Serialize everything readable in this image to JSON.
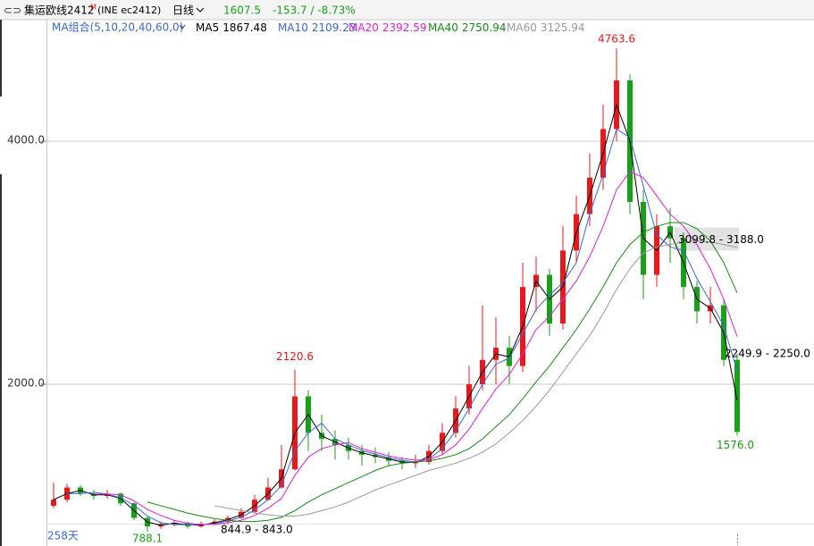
{
  "header": {
    "name": "集运欧线2412",
    "mark": "M",
    "code": "(INE ec2412)",
    "period": "日线",
    "price": "1607.5",
    "change": "-153.7 / -8.73%"
  },
  "chart_data": {
    "type": "candlestick",
    "ma_group": "MA组合(5,10,20,40,60,0)",
    "days": "258天",
    "ylim": [
      676,
      4978
    ],
    "yticks": [
      {
        "value": 4000,
        "label": "4000.0"
      },
      {
        "value": 2000,
        "label": "2000.0"
      }
    ],
    "grid": true,
    "up_color": "#e8191c",
    "down_color": "#18a018",
    "open": [
      1000,
      1050,
      1150,
      1100,
      1080,
      1100,
      1020,
      900,
      830,
      850,
      860,
      830,
      850,
      870,
      900,
      950,
      1050,
      1150,
      1300,
      1900,
      1600,
      1550,
      1500,
      1450,
      1420,
      1400,
      1370,
      1350,
      1360,
      1450,
      1600,
      1800,
      2000,
      2200,
      2300,
      2150,
      2800,
      2900,
      2500,
      3100,
      3400,
      3700,
      4100,
      4500,
      3500,
      2900,
      3300,
      3200,
      2800,
      2600,
      2650,
      2200
    ],
    "high": [
      1190,
      1180,
      1170,
      1130,
      1130,
      1110,
      1030,
      910,
      870,
      880,
      870,
      870,
      890,
      920,
      980,
      1090,
      1230,
      1500,
      2120.6,
      1950,
      1750,
      1620,
      1560,
      1500,
      1480,
      1440,
      1400,
      1420,
      1500,
      1680,
      1900,
      2150,
      2650,
      2550,
      2400,
      3000,
      3050,
      2950,
      3300,
      3550,
      3900,
      4300,
      4763.6,
      4550,
      3600,
      3400,
      3450,
      3250,
      2850,
      2800,
      2700,
      2250
    ],
    "low": [
      980,
      1030,
      1080,
      1050,
      1060,
      1000,
      880,
      788.1,
      810,
      830,
      810,
      820,
      840,
      850,
      890,
      940,
      1040,
      1140,
      1290,
      1450,
      1450,
      1380,
      1380,
      1330,
      1350,
      1320,
      1300,
      1310,
      1340,
      1420,
      1560,
      1750,
      1950,
      2000,
      2000,
      2100,
      2600,
      2400,
      2450,
      3000,
      3300,
      3600,
      4000,
      3400,
      2700,
      2800,
      3000,
      2700,
      2500,
      2500,
      2150,
      1576.0
    ],
    "close": [
      1050,
      1150,
      1100,
      1080,
      1100,
      1020,
      900,
      830,
      850,
      860,
      830,
      850,
      870,
      900,
      950,
      1050,
      1150,
      1300,
      1900,
      1600,
      1550,
      1500,
      1450,
      1420,
      1400,
      1370,
      1350,
      1360,
      1450,
      1600,
      1800,
      2000,
      2200,
      2300,
      2150,
      2800,
      2900,
      2500,
      3100,
      3400,
      3700,
      4100,
      4500,
      3500,
      2900,
      3300,
      3200,
      2800,
      2600,
      2650,
      2200,
      1607.5
    ],
    "series": [
      {
        "name": "MA5",
        "color": "#000000",
        "values": [
          1050,
          1100,
          1125,
          1090,
          1090,
          1060,
          960,
          865,
          840,
          855,
          845,
          840,
          860,
          885,
          925,
          1000,
          1100,
          1225,
          1600,
          1750,
          1575,
          1525,
          1475,
          1435,
          1410,
          1385,
          1360,
          1355,
          1405,
          1525,
          1700,
          1900,
          2100,
          2250,
          2225,
          2475,
          2850,
          2700,
          2800,
          3250,
          3550,
          3900,
          4300,
          4000,
          3200,
          3100,
          3250,
          3000,
          2700,
          2625,
          2425,
          1867.48
        ]
      },
      {
        "name": "MA10",
        "color": "#3a6ad8",
        "values": [
          null,
          1100,
          1100,
          1110,
          1095,
          1065,
          1005,
          915,
          860,
          845,
          845,
          845,
          850,
          875,
          905,
          965,
          1050,
          1165,
          1450,
          1600,
          1680,
          1550,
          1500,
          1455,
          1425,
          1395,
          1375,
          1360,
          1385,
          1470,
          1615,
          1800,
          2000,
          2165,
          2215,
          2415,
          2615,
          2735,
          2835,
          3000,
          3400,
          3730,
          4100,
          4030,
          3630,
          3230,
          3130,
          3100,
          2870,
          2680,
          2480,
          2109.23
        ]
      },
      {
        "name": "MA20",
        "color": "#e020d8",
        "values": [
          null,
          null,
          null,
          1095,
          1095,
          1090,
          1040,
          970,
          920,
          880,
          855,
          845,
          848,
          860,
          880,
          920,
          980,
          1060,
          1250,
          1400,
          1470,
          1500,
          1520,
          1470,
          1440,
          1410,
          1390,
          1375,
          1380,
          1420,
          1500,
          1630,
          1800,
          1960,
          2080,
          2250,
          2450,
          2560,
          2700,
          2850,
          3050,
          3300,
          3600,
          3750,
          3700,
          3550,
          3400,
          3300,
          3150,
          2950,
          2700,
          2392.59
        ]
      },
      {
        "name": "MA40",
        "color": "#188a18",
        "values": [
          null,
          null,
          null,
          null,
          null,
          null,
          null,
          1030,
          1000,
          970,
          940,
          915,
          895,
          880,
          870,
          870,
          880,
          905,
          960,
          1030,
          1090,
          1140,
          1190,
          1240,
          1290,
          1330,
          1350,
          1360,
          1370,
          1390,
          1420,
          1470,
          1550,
          1650,
          1750,
          1880,
          2020,
          2150,
          2300,
          2450,
          2620,
          2800,
          3000,
          3150,
          3250,
          3300,
          3330,
          3330,
          3280,
          3180,
          3000,
          2750.94
        ]
      },
      {
        "name": "MA60",
        "color": "#9a9a9a",
        "values": [
          null,
          null,
          null,
          null,
          null,
          null,
          null,
          null,
          null,
          null,
          null,
          null,
          1000,
          980,
          960,
          940,
          925,
          915,
          915,
          930,
          960,
          990,
          1030,
          1080,
          1130,
          1170,
          1210,
          1250,
          1290,
          1320,
          1350,
          1390,
          1440,
          1510,
          1600,
          1700,
          1820,
          1950,
          2100,
          2250,
          2400,
          2580,
          2780,
          2950,
          3080,
          3130,
          3150,
          3170,
          3180,
          3170,
          3150,
          3125.94
        ]
      }
    ],
    "annotations": [
      "2120.6",
      "4763.6",
      "788.1",
      "1576.0",
      "844.9 - 843.0",
      "3099.8 - 3188.0",
      "2249.9 - 2250.0"
    ]
  }
}
